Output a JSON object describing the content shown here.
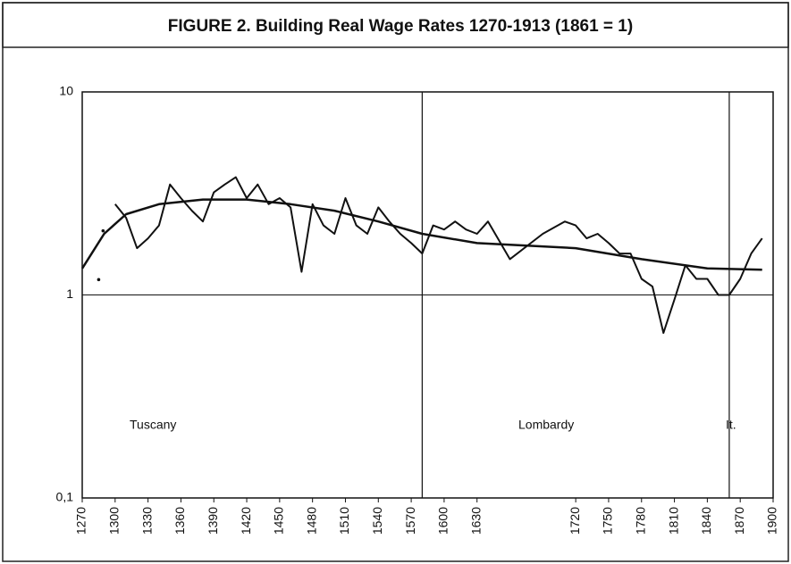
{
  "chart_data": {
    "type": "line",
    "title": "FIGURE 2. Building Real Wage Rates 1270-1913 (1861 = 1)",
    "log_y": true,
    "grid": true,
    "xlim": [
      1270,
      1900
    ],
    "xticks": [
      1270,
      1300,
      1330,
      1360,
      1390,
      1420,
      1450,
      1480,
      1510,
      1540,
      1570,
      1600,
      1630,
      1720,
      1750,
      1780,
      1810,
      1840,
      1870,
      1900
    ],
    "ylim": [
      0.1,
      10
    ],
    "yticks": [
      {
        "value": 0.1,
        "label": "0,1"
      },
      1,
      10
    ],
    "dividers": [
      1580,
      1860
    ],
    "annotations": [
      "Tuscany",
      "Lombardy",
      "It."
    ],
    "series": [
      {
        "color": "#111111",
        "width": 2,
        "x": [
          1285,
          1287,
          1289,
          1295,
          1300,
          1310,
          1320,
          1330,
          1340,
          1350,
          1360,
          1370,
          1380,
          1390,
          1400,
          1410,
          1420,
          1430,
          1440,
          1450,
          1460,
          1470,
          1480,
          1490,
          1500,
          1510,
          1520,
          1530,
          1540,
          1550,
          1560,
          1570,
          1580,
          1590,
          1600,
          1610,
          1620,
          1630,
          1640,
          1660,
          1690,
          1710,
          1720,
          1730,
          1740,
          1750,
          1760,
          1770,
          1780,
          1790,
          1800,
          1810,
          1820,
          1830,
          1840,
          1850,
          1860,
          1870,
          1880,
          1890
        ],
        "values": [
          1.19,
          null,
          2.07,
          null,
          2.8,
          2.4,
          1.7,
          1.9,
          2.2,
          3.5,
          3.0,
          2.6,
          2.3,
          3.2,
          3.5,
          3.8,
          3.0,
          3.5,
          2.8,
          3.0,
          2.7,
          1.3,
          2.8,
          2.2,
          2.0,
          3.0,
          2.2,
          2.0,
          2.7,
          2.3,
          2.0,
          1.8,
          1.6,
          2.2,
          2.1,
          2.3,
          2.1,
          2.0,
          2.3,
          1.5,
          2.0,
          2.3,
          2.2,
          1.9,
          2.0,
          1.8,
          1.6,
          1.6,
          1.2,
          1.1,
          0.65,
          0.95,
          1.4,
          1.2,
          1.2,
          1.0,
          1.0,
          1.2,
          1.6,
          1.9
        ]
      },
      {
        "color": "#111111",
        "width": 2.5,
        "x": [
          1270,
          1290,
          1310,
          1340,
          1380,
          1420,
          1460,
          1500,
          1540,
          1580,
          1630,
          1720,
          1780,
          1840,
          1890
        ],
        "values": [
          1.35,
          2.0,
          2.5,
          2.8,
          2.95,
          2.95,
          2.8,
          2.6,
          2.3,
          2.0,
          1.8,
          1.7,
          1.5,
          1.35,
          1.33
        ]
      }
    ]
  }
}
